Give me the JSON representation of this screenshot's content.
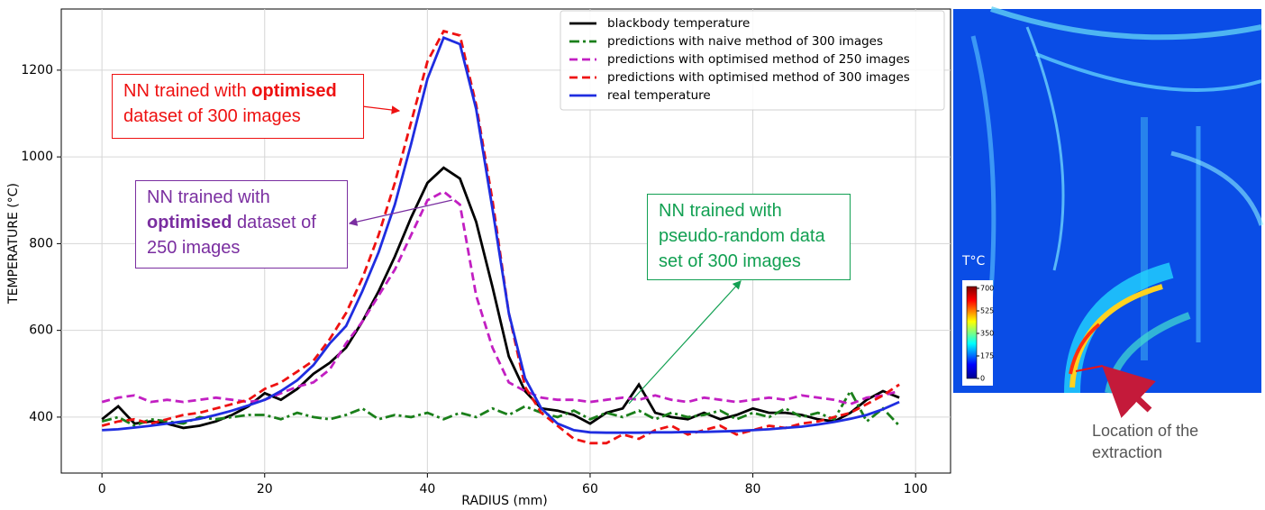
{
  "chart_data": {
    "type": "line",
    "x_label": "RADIUS (mm)",
    "y_label": "TEMPERATURE (°C)",
    "x": [
      0,
      2,
      4,
      6,
      8,
      10,
      12,
      14,
      16,
      18,
      20,
      22,
      24,
      26,
      28,
      30,
      32,
      34,
      36,
      38,
      40,
      42,
      44,
      46,
      48,
      50,
      52,
      54,
      56,
      58,
      60,
      62,
      64,
      66,
      68,
      70,
      72,
      74,
      76,
      78,
      80,
      82,
      84,
      86,
      88,
      90,
      92,
      94,
      96,
      98
    ],
    "xlim": [
      -5,
      104.3
    ],
    "xticks": [
      0,
      20,
      40,
      60,
      80,
      100
    ],
    "ylim": [
      271,
      1341
    ],
    "yticks": [
      400,
      600,
      800,
      1000,
      1200
    ],
    "grid": true,
    "legend": "upper right",
    "series": [
      {
        "name": "blackbody temperature",
        "color": "#000000",
        "style": "solid",
        "values": [
          395,
          425,
          385,
          390,
          385,
          375,
          380,
          390,
          405,
          425,
          455,
          440,
          465,
          500,
          525,
          560,
          620,
          690,
          770,
          860,
          940,
          975,
          950,
          850,
          700,
          540,
          460,
          420,
          415,
          405,
          385,
          410,
          420,
          475,
          410,
          400,
          395,
          410,
          395,
          405,
          420,
          410,
          410,
          405,
          395,
          390,
          410,
          440,
          460,
          445
        ]
      },
      {
        "name": "predictions with naive method of 300 images",
        "color": "#1a7f1a",
        "style": "dashdot",
        "values": [
          390,
          400,
          380,
          395,
          390,
          385,
          400,
          395,
          400,
          405,
          405,
          395,
          410,
          400,
          395,
          405,
          420,
          395,
          405,
          400,
          410,
          395,
          410,
          400,
          420,
          405,
          425,
          410,
          400,
          415,
          395,
          410,
          400,
          415,
          395,
          410,
          400,
          405,
          415,
          395,
          410,
          400,
          420,
          400,
          410,
          395,
          460,
          390,
          420,
          380
        ]
      },
      {
        "name": "predictions with optimised method of 250 images",
        "color": "#c21fc2",
        "style": "dashed",
        "values": [
          435,
          445,
          450,
          435,
          440,
          435,
          440,
          445,
          440,
          435,
          440,
          455,
          470,
          480,
          510,
          570,
          620,
          680,
          740,
          820,
          900,
          920,
          890,
          680,
          560,
          480,
          460,
          445,
          440,
          440,
          435,
          440,
          445,
          440,
          450,
          440,
          435,
          445,
          440,
          435,
          440,
          445,
          440,
          450,
          445,
          440,
          430,
          445,
          450,
          460
        ]
      },
      {
        "name": "predictions with optimised method of 300 images",
        "color": "#ee1111",
        "style": "dashed",
        "values": [
          380,
          390,
          395,
          385,
          395,
          405,
          410,
          420,
          430,
          440,
          465,
          480,
          505,
          530,
          580,
          640,
          720,
          820,
          940,
          1080,
          1220,
          1290,
          1280,
          1120,
          900,
          640,
          470,
          410,
          380,
          350,
          340,
          340,
          360,
          350,
          370,
          380,
          360,
          370,
          380,
          360,
          370,
          380,
          375,
          385,
          390,
          400,
          410,
          430,
          450,
          475
        ]
      },
      {
        "name": "real temperature",
        "color": "#1f2de0",
        "style": "solid",
        "values": [
          370,
          372,
          376,
          380,
          385,
          390,
          396,
          405,
          415,
          427,
          440,
          460,
          485,
          520,
          570,
          610,
          690,
          780,
          890,
          1030,
          1180,
          1275,
          1260,
          1110,
          880,
          640,
          490,
          420,
          385,
          370,
          365,
          364,
          364,
          364,
          365,
          365,
          366,
          366,
          367,
          368,
          370,
          372,
          375,
          378,
          383,
          389,
          396,
          405,
          418,
          435
        ]
      }
    ],
    "annotations": [
      {
        "parts": [
          "NN trained with ",
          "optimised",
          " dataset of 300 images"
        ],
        "color": "#ee1111"
      },
      {
        "parts": [
          "NN trained with ",
          "optimised",
          " dataset of 250 images"
        ],
        "color": "#7a2ea0"
      },
      {
        "parts": [
          "NN trained with pseudo-random data set of 300 images"
        ],
        "color": "#12a052"
      }
    ]
  },
  "inset": {
    "colorbar_label": "T°C",
    "colorbar_ticks": [
      700,
      525,
      350,
      175,
      0
    ],
    "caption": "Location of the extraction"
  }
}
